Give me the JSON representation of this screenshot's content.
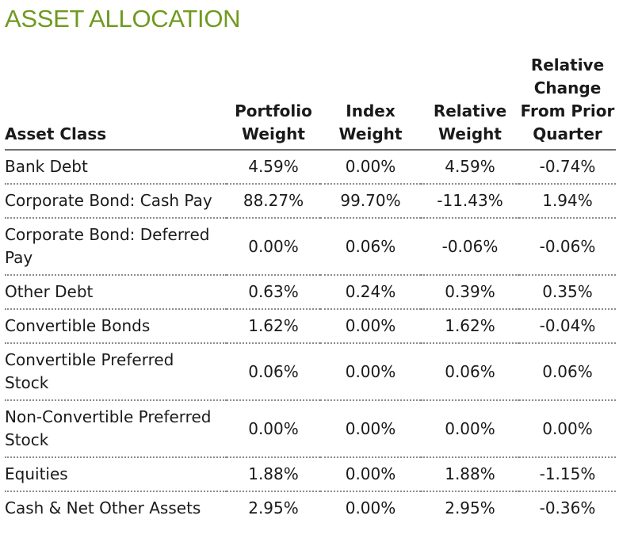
{
  "title": "ASSET ALLOCATION",
  "accent_color": "#6f9a1f",
  "table": {
    "headers": {
      "asset_class": "Asset Class",
      "portfolio_weight": "Portfolio Weight",
      "index_weight": "Index Weight",
      "relative_weight": "Relative Weight",
      "relative_change": "Relative Change From Prior Quarter"
    },
    "rows": [
      {
        "asset_class": "Bank Debt",
        "portfolio_weight": "4.59%",
        "index_weight": "0.00%",
        "relative_weight": "4.59%",
        "relative_change": "-0.74%"
      },
      {
        "asset_class": "Corporate Bond: Cash Pay",
        "portfolio_weight": "88.27%",
        "index_weight": "99.70%",
        "relative_weight": "-11.43%",
        "relative_change": "1.94%"
      },
      {
        "asset_class": "Corporate Bond: Deferred Pay",
        "portfolio_weight": "0.00%",
        "index_weight": "0.06%",
        "relative_weight": "-0.06%",
        "relative_change": "-0.06%"
      },
      {
        "asset_class": "Other Debt",
        "portfolio_weight": "0.63%",
        "index_weight": "0.24%",
        "relative_weight": "0.39%",
        "relative_change": "0.35%"
      },
      {
        "asset_class": "Convertible Bonds",
        "portfolio_weight": "1.62%",
        "index_weight": "0.00%",
        "relative_weight": "1.62%",
        "relative_change": "-0.04%"
      },
      {
        "asset_class": "Convertible Preferred Stock",
        "portfolio_weight": "0.06%",
        "index_weight": "0.00%",
        "relative_weight": "0.06%",
        "relative_change": "0.06%"
      },
      {
        "asset_class": "Non-Convertible Preferred Stock",
        "portfolio_weight": "0.00%",
        "index_weight": "0.00%",
        "relative_weight": "0.00%",
        "relative_change": "0.00%"
      },
      {
        "asset_class": "Equities",
        "portfolio_weight": "1.88%",
        "index_weight": "0.00%",
        "relative_weight": "1.88%",
        "relative_change": "-1.15%"
      },
      {
        "asset_class": "Cash & Net Other Assets",
        "portfolio_weight": "2.95%",
        "index_weight": "0.00%",
        "relative_weight": "2.95%",
        "relative_change": "-0.36%"
      }
    ]
  }
}
